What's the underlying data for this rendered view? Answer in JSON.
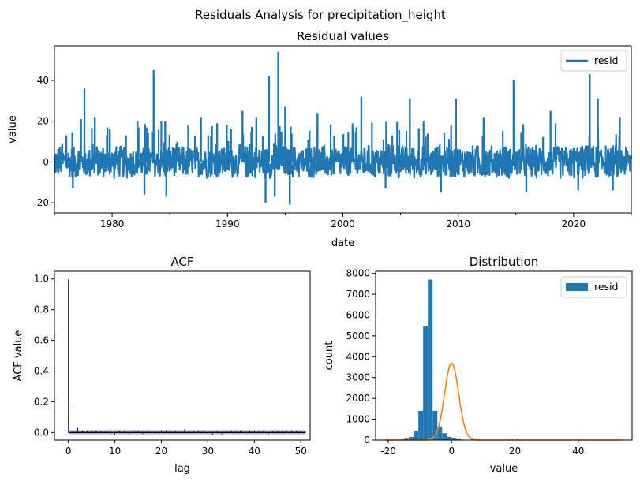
{
  "suptitle": "Residuals Analysis for precipitation_height",
  "colors": {
    "series": "#1f77b4",
    "kde": "#ff7f0e",
    "ci_band": "#b0bfe8",
    "axis": "#000000",
    "legend_border": "#cccccc"
  },
  "chart_data": [
    {
      "type": "line",
      "title": "Residual values",
      "xlabel": "date",
      "ylabel": "value",
      "legend": {
        "label": "resid",
        "location": "top-right"
      },
      "xlim": [
        1975.0,
        2025.0
      ],
      "ylim": [
        -25,
        57
      ],
      "xtick_labels": [
        "1980",
        "1990",
        "2000",
        "2010",
        "2020"
      ],
      "yticks": [
        -20,
        0,
        20,
        40
      ],
      "baseline_band": [
        -6,
        6
      ],
      "spikes": [
        {
          "x": 1977.3,
          "y": 21
        },
        {
          "x": 1977.6,
          "y": 36
        },
        {
          "x": 1978.5,
          "y": 22
        },
        {
          "x": 1979.8,
          "y": 16
        },
        {
          "x": 1981.2,
          "y": 13
        },
        {
          "x": 1982.2,
          "y": 20
        },
        {
          "x": 1983.6,
          "y": 45
        },
        {
          "x": 1984.6,
          "y": 20
        },
        {
          "x": 1986.6,
          "y": 18
        },
        {
          "x": 1987.7,
          "y": 22
        },
        {
          "x": 1989.1,
          "y": 19
        },
        {
          "x": 1990.3,
          "y": 16
        },
        {
          "x": 1991.3,
          "y": 25
        },
        {
          "x": 1992.5,
          "y": 22
        },
        {
          "x": 1993.6,
          "y": 42
        },
        {
          "x": 1994.4,
          "y": 54
        },
        {
          "x": 1995.0,
          "y": 27
        },
        {
          "x": 1997.8,
          "y": 24
        },
        {
          "x": 2001.6,
          "y": 32
        },
        {
          "x": 2005.8,
          "y": 31
        },
        {
          "x": 2009.8,
          "y": 31
        },
        {
          "x": 2012.2,
          "y": 22
        },
        {
          "x": 2014.8,
          "y": 40
        },
        {
          "x": 2018.0,
          "y": 25
        },
        {
          "x": 2021.4,
          "y": 43
        },
        {
          "x": 2022.1,
          "y": 31
        },
        {
          "x": 2024.0,
          "y": 22
        }
      ],
      "dips": [
        {
          "x": 1976.6,
          "y": -13
        },
        {
          "x": 1982.8,
          "y": -16
        },
        {
          "x": 1984.7,
          "y": -17
        },
        {
          "x": 1993.3,
          "y": -20
        },
        {
          "x": 1994.1,
          "y": -17
        },
        {
          "x": 1995.4,
          "y": -21
        },
        {
          "x": 2003.7,
          "y": -13
        },
        {
          "x": 2008.5,
          "y": -15
        },
        {
          "x": 2015.9,
          "y": -15
        },
        {
          "x": 2020.4,
          "y": -14
        },
        {
          "x": 2023.4,
          "y": -14
        }
      ]
    },
    {
      "type": "bar",
      "title": "ACF",
      "xlabel": "lag",
      "ylabel": "ACF value",
      "xlim": [
        -3,
        52
      ],
      "ylim": [
        -0.05,
        1.05
      ],
      "xticks": [
        0,
        10,
        20,
        30,
        40,
        50
      ],
      "yticks": [
        0.0,
        0.2,
        0.4,
        0.6,
        0.8,
        1.0
      ],
      "ytick_labels": [
        "0.0",
        "0.2",
        "0.4",
        "0.6",
        "0.8",
        "1.0"
      ],
      "confidence_band": [
        -0.017,
        0.017
      ],
      "values": [
        1.0,
        0.155,
        0.03,
        0.012,
        0.01,
        0.015,
        0.012,
        0.01,
        0.008,
        0.012,
        -0.018,
        0.01,
        0.008,
        -0.012,
        0.01,
        0.012,
        -0.01,
        0.008,
        0.01,
        0.005,
        0.01,
        0.012,
        0.008,
        0.01,
        0.006,
        0.022,
        0.01,
        0.008,
        0.01,
        0.008,
        0.012,
        -0.015,
        0.01,
        -0.012,
        0.01,
        0.012,
        0.008,
        0.01,
        -0.01,
        0.01,
        0.012,
        0.008,
        0.01,
        -0.012,
        0.01,
        0.01,
        0.008,
        0.01,
        0.012,
        0.01,
        0.01,
        0.008
      ]
    },
    {
      "type": "bar",
      "title": "Distribution",
      "xlabel": "value",
      "ylabel": "count",
      "legend": {
        "label": "resid",
        "location": "top-right"
      },
      "xlim": [
        -24,
        57
      ],
      "ylim": [
        0,
        8100
      ],
      "xticks": [
        -20,
        0,
        20,
        40
      ],
      "yticks": [
        0,
        1000,
        2000,
        3000,
        4000,
        5000,
        6000,
        7000,
        8000
      ],
      "bin_edges_start": -21,
      "bin_width": 1.5,
      "counts": [
        5,
        10,
        20,
        30,
        60,
        150,
        450,
        1400,
        5450,
        7700,
        1400,
        650,
        330,
        160,
        80,
        40,
        20,
        10,
        8,
        5,
        3,
        2
      ],
      "kde": {
        "mean": 0,
        "sd": 2.2,
        "peak": 3700,
        "x_range": [
          -21,
          54
        ]
      }
    }
  ]
}
